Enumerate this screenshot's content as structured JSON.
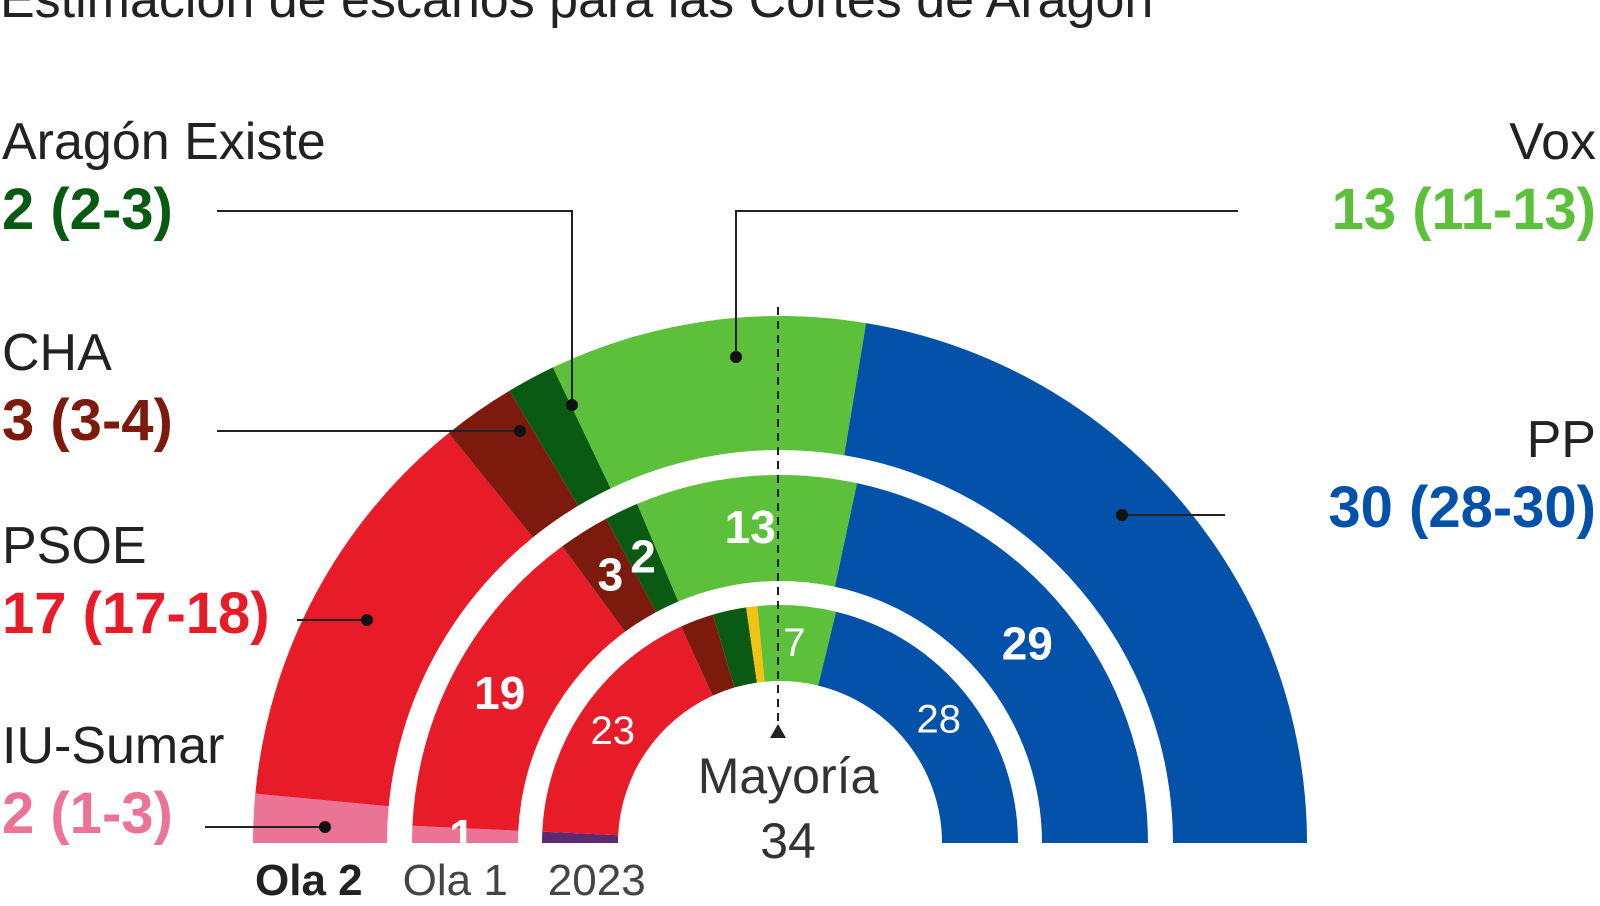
{
  "title": "Estimación de escaños para las Cortes de Aragón",
  "colors": {
    "pp": "#0351a8",
    "vox": "#5cc03b",
    "aragon_existe": "#0b5a14",
    "cha": "#7c1a0e",
    "psoe": "#e81c28",
    "iu_sumar": "#ea7396",
    "par": "#f2c313",
    "podemos": "#5b2b72",
    "text": "#222222"
  },
  "labels": {
    "aragon_existe": {
      "name": "Aragón Existe",
      "value": "2 (2-3)"
    },
    "cha": {
      "name": "CHA",
      "value": "3 (3-4)"
    },
    "psoe": {
      "name": "PSOE",
      "value": "17 (17-18)"
    },
    "iu_sumar": {
      "name": "IU-Sumar",
      "value": "2 (1-3)"
    },
    "vox": {
      "name": "Vox",
      "value": "13 (11-13)"
    },
    "pp": {
      "name": "PP",
      "value": "30 (28-30)"
    }
  },
  "majority": {
    "label": "Mayoría",
    "value": "34"
  },
  "waves": {
    "current": "Ola 2",
    "previous": "Ola 1",
    "year": "2023"
  },
  "chart_data": {
    "type": "pie",
    "subtype": "parliament-hemicycle",
    "total_seats": 67,
    "rings": [
      {
        "name": "Ola 2",
        "segments": [
          {
            "party": "IU-Sumar",
            "seats": 2,
            "color": "#ea7396"
          },
          {
            "party": "PSOE",
            "seats": 17,
            "color": "#e81c28"
          },
          {
            "party": "CHA",
            "seats": 3,
            "color": "#7c1a0e"
          },
          {
            "party": "Aragón Existe",
            "seats": 2,
            "color": "#0b5a14"
          },
          {
            "party": "Vox",
            "seats": 13,
            "color": "#5cc03b"
          },
          {
            "party": "PP",
            "seats": 30,
            "color": "#0351a8"
          }
        ]
      },
      {
        "name": "Ola 1",
        "segments": [
          {
            "party": "IU-Sumar",
            "seats": 1,
            "color": "#ea7396",
            "label": "1"
          },
          {
            "party": "PSOE",
            "seats": 19,
            "color": "#e81c28",
            "label": "19"
          },
          {
            "party": "CHA",
            "seats": 3,
            "color": "#7c1a0e",
            "label": "3"
          },
          {
            "party": "Aragón Existe",
            "seats": 2,
            "color": "#0b5a14",
            "label": "2"
          },
          {
            "party": "Vox",
            "seats": 13,
            "color": "#5cc03b",
            "label": "13"
          },
          {
            "party": "PP",
            "seats": 29,
            "color": "#0351a8",
            "label": "29"
          }
        ]
      },
      {
        "name": "2023",
        "segments": [
          {
            "party": "Podemos",
            "seats": 1,
            "color": "#5b2b72"
          },
          {
            "party": "PSOE",
            "seats": 23,
            "color": "#e81c28",
            "label": "23"
          },
          {
            "party": "CHA",
            "seats": 3,
            "color": "#7c1a0e"
          },
          {
            "party": "Aragón Existe",
            "seats": 3,
            "color": "#0b5a14"
          },
          {
            "party": "PAR",
            "seats": 1,
            "color": "#f2c313"
          },
          {
            "party": "Vox",
            "seats": 7,
            "color": "#5cc03b",
            "label": "7"
          },
          {
            "party": "PP",
            "seats": 28,
            "color": "#0351a8",
            "label": "28"
          }
        ]
      }
    ],
    "majority_threshold": 34
  }
}
